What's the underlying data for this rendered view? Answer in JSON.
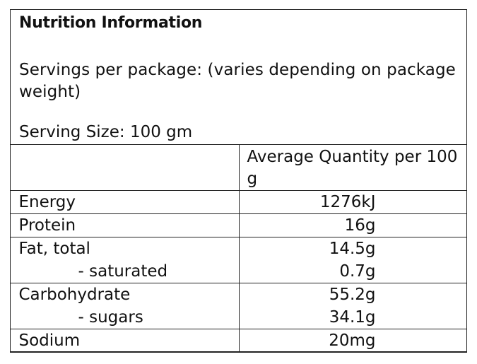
{
  "panel": {
    "title": "Nutrition Information",
    "servings": "Servings per package: (varies depending on package weight)",
    "serving_size": "Serving Size: 100 gm"
  },
  "table": {
    "header": "Average Quantity per 100 g",
    "rows": [
      {
        "name": "Energy",
        "value": "1276kJ"
      },
      {
        "name": "Protein",
        "value": "16g"
      },
      {
        "name": "Fat, total",
        "value": "14.5g"
      },
      {
        "name": "- saturated",
        "value": "0.7g"
      },
      {
        "name": "Carbohydrate",
        "value": "55.2g"
      },
      {
        "name": "- sugars",
        "value": "34.1g"
      },
      {
        "name": "Sodium",
        "value": "20mg"
      }
    ]
  }
}
